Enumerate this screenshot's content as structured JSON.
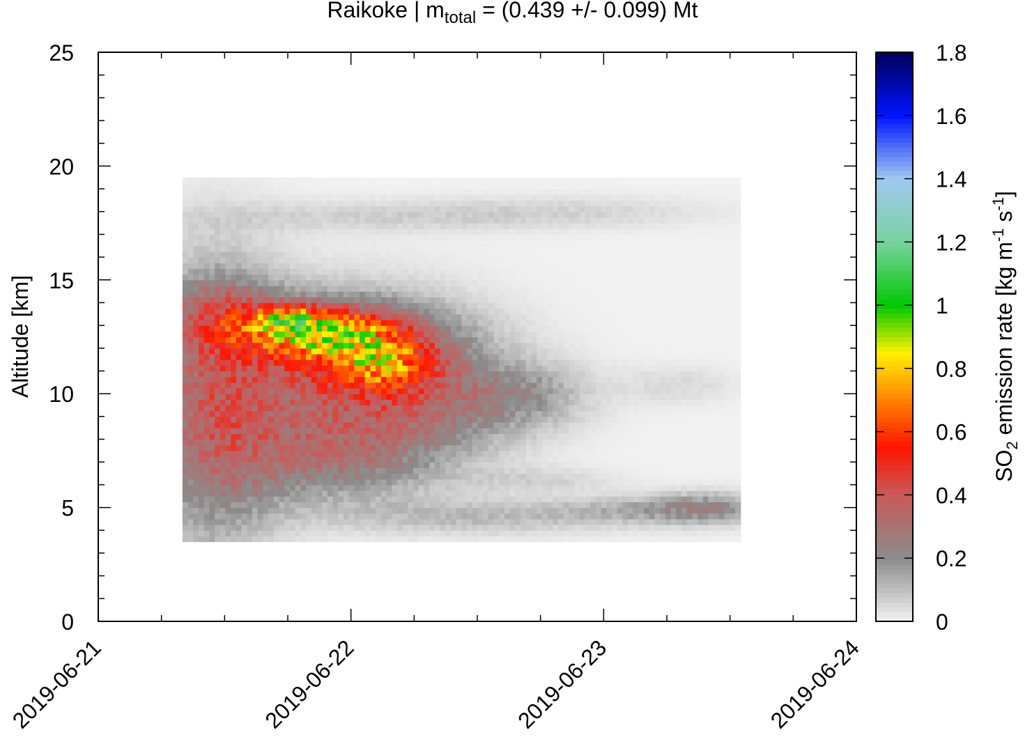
{
  "chart_data": {
    "type": "heatmap",
    "title": {
      "prefix": "Raikoke | m",
      "subscript": "total",
      "suffix": " = (0.439 +/- 0.099) Mt"
    },
    "xlabel": "",
    "ylabel": "Altitude [km]",
    "x_tick_labels": [
      "2019-06-21",
      "2019-06-22",
      "2019-06-23",
      "2019-06-24"
    ],
    "xlim": [
      "2019-06-21",
      "2019-06-24"
    ],
    "y_ticks": [
      0,
      5,
      10,
      15,
      20,
      25
    ],
    "ylim": [
      0,
      25
    ],
    "colorbar": {
      "label": {
        "p1": "SO",
        "s1": "2",
        "p2": " emission rate [kg m",
        "e1": "-1",
        "p3": " s",
        "e2": "-1",
        "p4": "]"
      },
      "ticks": [
        "0",
        "0.2",
        "0.4",
        "0.6",
        "0.8",
        "1",
        "1.2",
        "1.4",
        "1.6",
        "1.8"
      ],
      "range": [
        0,
        1.8
      ],
      "colormap": [
        {
          "v": 0.0,
          "color": "#f2f2f2"
        },
        {
          "v": 0.2,
          "color": "#8c8c8c"
        },
        {
          "v": 0.4,
          "color": "#c85a5a"
        },
        {
          "v": 0.55,
          "color": "#ff1400"
        },
        {
          "v": 0.7,
          "color": "#ff8200"
        },
        {
          "v": 0.85,
          "color": "#fff000"
        },
        {
          "v": 1.0,
          "color": "#00c800"
        },
        {
          "v": 1.2,
          "color": "#78d2a0"
        },
        {
          "v": 1.4,
          "color": "#a0c8f0"
        },
        {
          "v": 1.6,
          "color": "#0014ff"
        },
        {
          "v": 1.8,
          "color": "#00005a"
        }
      ]
    },
    "data_extent": {
      "time_start": "2019-06-21T08:00",
      "time_end": "2019-06-23T13:00",
      "alt_min_km": 3.5,
      "alt_max_km": 19.5
    },
    "plumes": [
      {
        "t_hours": 11,
        "alt_km": 9.5,
        "sx_h": 4.5,
        "sy_km": 4.2,
        "rate": 0.3
      },
      {
        "t_hours": 12,
        "alt_km": 13.6,
        "sx_h": 3.5,
        "sy_km": 1.0,
        "rate": 0.18
      },
      {
        "t_hours": 22,
        "alt_km": 7.2,
        "sx_h": 7.5,
        "sy_km": 1.4,
        "rate": 0.22
      },
      {
        "t_hours": 24,
        "alt_km": 11.0,
        "sx_h": 8.5,
        "sy_km": 2.2,
        "rate": 0.3
      },
      {
        "t_hours": 22,
        "alt_km": 12.6,
        "sx_h": 7.0,
        "sy_km": 1.0,
        "rate": 0.28
      },
      {
        "t_hours": 21,
        "alt_km": 12.8,
        "sx_h": 4.5,
        "sy_km": 0.7,
        "rate": 0.38
      },
      {
        "t_hours": 27,
        "alt_km": 11.3,
        "sx_h": 4.0,
        "sy_km": 0.9,
        "rate": 0.38
      },
      {
        "t_hours": 18,
        "alt_km": 13.3,
        "sx_h": 1.8,
        "sy_km": 0.35,
        "rate": 0.35
      },
      {
        "t_hours": 31,
        "alt_km": 9.2,
        "sx_h": 7.0,
        "sy_km": 1.3,
        "rate": 0.12
      },
      {
        "t_hours": 40,
        "alt_km": 10.0,
        "sx_h": 4.5,
        "sy_km": 1.0,
        "rate": 0.14
      },
      {
        "t_hours": 36,
        "alt_km": 4.6,
        "sx_h": 10.0,
        "sy_km": 0.55,
        "rate": 0.1
      },
      {
        "t_hours": 58,
        "alt_km": 5.0,
        "sx_h": 4.0,
        "sy_km": 0.5,
        "rate": 0.17
      },
      {
        "t_hours": 51,
        "alt_km": 4.9,
        "sx_h": 6.0,
        "sy_km": 0.4,
        "rate": 0.1
      },
      {
        "t_hours": 26,
        "alt_km": 17.8,
        "sx_h": 12.0,
        "sy_km": 0.5,
        "rate": 0.06
      },
      {
        "t_hours": 45,
        "alt_km": 18.0,
        "sx_h": 10.0,
        "sy_km": 0.5,
        "rate": 0.05
      },
      {
        "t_hours": 42,
        "alt_km": 6.2,
        "sx_h": 5.0,
        "sy_km": 0.4,
        "rate": 0.06
      },
      {
        "t_hours": 55,
        "alt_km": 10.4,
        "sx_h": 4.0,
        "sy_km": 0.6,
        "rate": 0.05
      }
    ]
  }
}
